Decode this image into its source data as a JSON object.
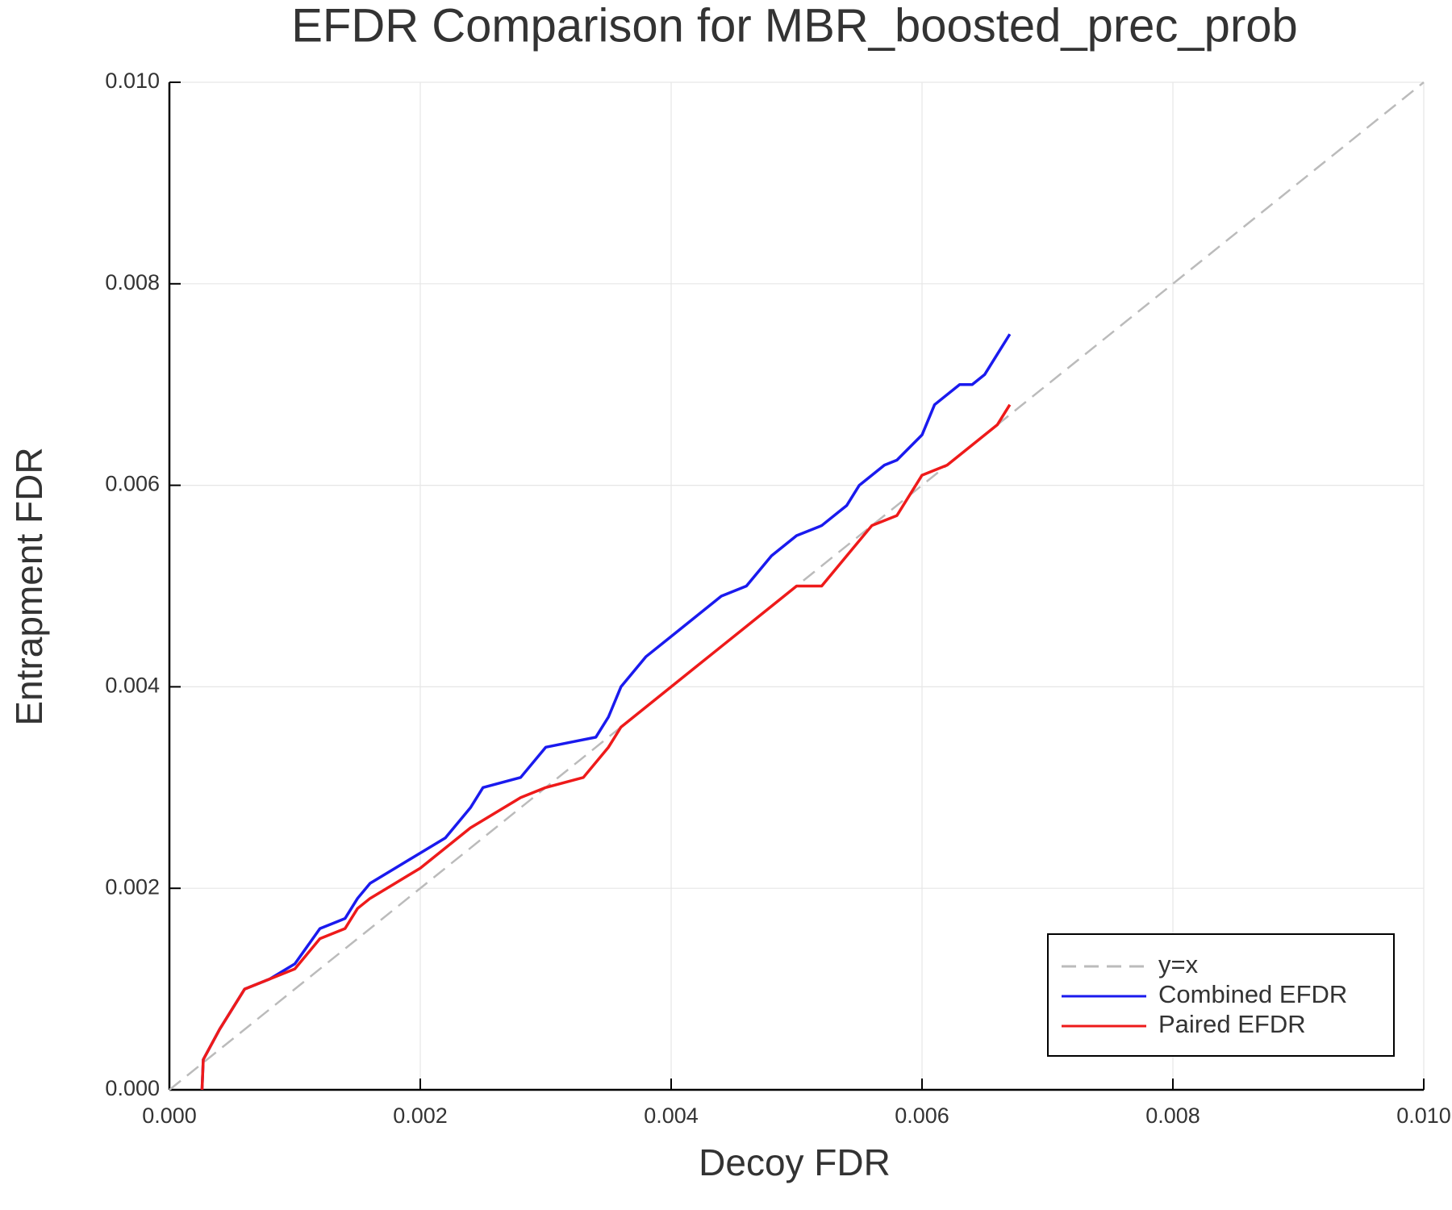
{
  "chart_data": {
    "type": "line",
    "title": "EFDR Comparison for MBR_boosted_prec_prob",
    "x_label": "Decoy FDR",
    "y_label": "Entrapment FDR",
    "xlim": [
      0,
      0.01
    ],
    "ylim": [
      0,
      0.01
    ],
    "xticks": [
      {
        "value": 0,
        "label": "0.000"
      },
      {
        "value": 0.002,
        "label": "0.002"
      },
      {
        "value": 0.004,
        "label": "0.004"
      },
      {
        "value": 0.006,
        "label": "0.006"
      },
      {
        "value": 0.008,
        "label": "0.008"
      },
      {
        "value": 0.01,
        "label": "0.010"
      }
    ],
    "yticks": [
      {
        "value": 0,
        "label": "0.000"
      },
      {
        "value": 0.002,
        "label": "0.002"
      },
      {
        "value": 0.004,
        "label": "0.004"
      },
      {
        "value": 0.006,
        "label": "0.006"
      },
      {
        "value": 0.008,
        "label": "0.008"
      },
      {
        "value": 0.01,
        "label": "0.010"
      }
    ],
    "grid": true,
    "legend_position": "bottom-right",
    "series": [
      {
        "name": "y=x",
        "color": "#bbbbbb",
        "style": "dashed",
        "x": [
          0,
          0.01
        ],
        "values": [
          0,
          0.01
        ]
      },
      {
        "name": "Combined EFDR",
        "color": "#1a1aee",
        "style": "solid",
        "x": [
          0.00026,
          0.00027,
          0.0004,
          0.0005,
          0.0006,
          0.0008,
          0.001,
          0.0012,
          0.0014,
          0.0015,
          0.0016,
          0.0018,
          0.002,
          0.0022,
          0.0024,
          0.0025,
          0.0028,
          0.003,
          0.0032,
          0.0034,
          0.0035,
          0.0036,
          0.0038,
          0.004,
          0.0042,
          0.0044,
          0.0046,
          0.0048,
          0.005,
          0.0052,
          0.0054,
          0.0055,
          0.0057,
          0.0058,
          0.006,
          0.0061,
          0.0063,
          0.0064,
          0.0065,
          0.0066,
          0.0067
        ],
        "values": [
          0,
          0.0003,
          0.0006,
          0.0008,
          0.001,
          0.0011,
          0.00125,
          0.0016,
          0.0017,
          0.0019,
          0.00205,
          0.0022,
          0.00235,
          0.0025,
          0.0028,
          0.003,
          0.0031,
          0.0034,
          0.00345,
          0.0035,
          0.0037,
          0.004,
          0.0043,
          0.0045,
          0.0047,
          0.0049,
          0.005,
          0.0053,
          0.0055,
          0.0056,
          0.0058,
          0.006,
          0.0062,
          0.00625,
          0.0065,
          0.0068,
          0.007,
          0.007,
          0.0071,
          0.0073,
          0.0075
        ]
      },
      {
        "name": "Paired EFDR",
        "color": "#ee1a1a",
        "style": "solid",
        "x": [
          0.00026,
          0.00027,
          0.0004,
          0.0005,
          0.0006,
          0.0008,
          0.001,
          0.0012,
          0.0014,
          0.0015,
          0.0016,
          0.0018,
          0.002,
          0.0022,
          0.0024,
          0.0026,
          0.0028,
          0.003,
          0.0033,
          0.0035,
          0.0036,
          0.0038,
          0.004,
          0.0042,
          0.0044,
          0.0046,
          0.0048,
          0.005,
          0.0052,
          0.0054,
          0.0056,
          0.0058,
          0.006,
          0.0062,
          0.0064,
          0.0066,
          0.0067
        ],
        "values": [
          0,
          0.0003,
          0.0006,
          0.0008,
          0.001,
          0.0011,
          0.0012,
          0.0015,
          0.0016,
          0.0018,
          0.0019,
          0.00205,
          0.0022,
          0.0024,
          0.0026,
          0.00275,
          0.0029,
          0.003,
          0.0031,
          0.0034,
          0.0036,
          0.0038,
          0.004,
          0.0042,
          0.0044,
          0.0046,
          0.0048,
          0.005,
          0.005,
          0.0053,
          0.0056,
          0.0057,
          0.0061,
          0.0062,
          0.0064,
          0.0066,
          0.0068
        ]
      }
    ]
  }
}
